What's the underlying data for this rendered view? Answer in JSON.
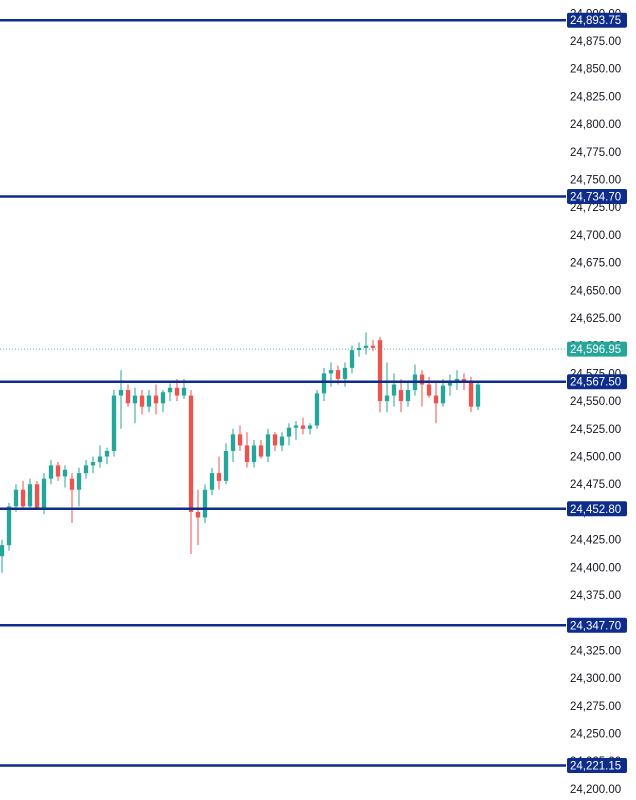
{
  "chart_data": {
    "type": "candlestick",
    "ylim": [
      24190,
      24912
    ],
    "y_ticks": [
      "24,900.00",
      "24,875.00",
      "24,850.00",
      "24,825.00",
      "24,800.00",
      "24,775.00",
      "24,750.00",
      "24,725.00",
      "24,700.00",
      "24,675.00",
      "24,650.00",
      "24,625.00",
      "24,600.00",
      "24,575.00",
      "24,550.00",
      "24,525.00",
      "24,500.00",
      "24,475.00",
      "24,450.00",
      "24,425.00",
      "24,400.00",
      "24,375.00",
      "24,350.00",
      "24,325.00",
      "24,300.00",
      "24,275.00",
      "24,250.00",
      "24,225.00",
      "24,200.00"
    ],
    "y_tick_values": [
      24900,
      24875,
      24850,
      24825,
      24800,
      24775,
      24750,
      24725,
      24700,
      24675,
      24650,
      24625,
      24600,
      24575,
      24550,
      24525,
      24500,
      24475,
      24450,
      24425,
      24400,
      24375,
      24350,
      24325,
      24300,
      24275,
      24250,
      24225,
      24200
    ],
    "horizontal_levels": [
      {
        "value": 24893.75,
        "label": "24,893.75"
      },
      {
        "value": 24734.7,
        "label": "24,734.70"
      },
      {
        "value": 24567.5,
        "label": "24,567.50"
      },
      {
        "value": 24452.8,
        "label": "24,452.80"
      },
      {
        "value": 24347.7,
        "label": "24,347.70"
      },
      {
        "value": 24221.15,
        "label": "24,221.15"
      }
    ],
    "last_price": {
      "value": 24596.95,
      "label": "24,596.95"
    },
    "colors": {
      "up": "#26a69a",
      "down": "#ef5350",
      "level": "#0d2c8c",
      "last_price": "#26a69a"
    },
    "candles": [
      {
        "o": 24410,
        "h": 24425,
        "l": 24395,
        "c": 24420
      },
      {
        "o": 24420,
        "h": 24458,
        "l": 24415,
        "c": 24455
      },
      {
        "o": 24455,
        "h": 24475,
        "l": 24450,
        "c": 24470
      },
      {
        "o": 24470,
        "h": 24478,
        "l": 24452,
        "c": 24455
      },
      {
        "o": 24455,
        "h": 24480,
        "l": 24452,
        "c": 24475
      },
      {
        "o": 24475,
        "h": 24478,
        "l": 24452,
        "c": 24452
      },
      {
        "o": 24452,
        "h": 24485,
        "l": 24448,
        "c": 24480
      },
      {
        "o": 24480,
        "h": 24497,
        "l": 24475,
        "c": 24492
      },
      {
        "o": 24492,
        "h": 24495,
        "l": 24478,
        "c": 24482
      },
      {
        "o": 24482,
        "h": 24492,
        "l": 24472,
        "c": 24488
      },
      {
        "o": 24480,
        "h": 24485,
        "l": 24440,
        "c": 24470
      },
      {
        "o": 24470,
        "h": 24490,
        "l": 24455,
        "c": 24485
      },
      {
        "o": 24485,
        "h": 24497,
        "l": 24480,
        "c": 24492
      },
      {
        "o": 24492,
        "h": 24500,
        "l": 24485,
        "c": 24495
      },
      {
        "o": 24495,
        "h": 24510,
        "l": 24490,
        "c": 24500
      },
      {
        "o": 24500,
        "h": 24508,
        "l": 24493,
        "c": 24505
      },
      {
        "o": 24505,
        "h": 24560,
        "l": 24500,
        "c": 24555
      },
      {
        "o": 24555,
        "h": 24578,
        "l": 24525,
        "c": 24560
      },
      {
        "o": 24560,
        "h": 24565,
        "l": 24545,
        "c": 24548
      },
      {
        "o": 24548,
        "h": 24562,
        "l": 24530,
        "c": 24555
      },
      {
        "o": 24555,
        "h": 24560,
        "l": 24538,
        "c": 24545
      },
      {
        "o": 24545,
        "h": 24560,
        "l": 24540,
        "c": 24555
      },
      {
        "o": 24555,
        "h": 24565,
        "l": 24538,
        "c": 24548
      },
      {
        "o": 24548,
        "h": 24560,
        "l": 24540,
        "c": 24558
      },
      {
        "o": 24558,
        "h": 24566,
        "l": 24550,
        "c": 24562
      },
      {
        "o": 24562,
        "h": 24570,
        "l": 24550,
        "c": 24555
      },
      {
        "o": 24555,
        "h": 24570,
        "l": 24552,
        "c": 24562
      },
      {
        "o": 24555,
        "h": 24560,
        "l": 24412,
        "c": 24450
      },
      {
        "o": 24450,
        "h": 24470,
        "l": 24420,
        "c": 24445
      },
      {
        "o": 24445,
        "h": 24475,
        "l": 24440,
        "c": 24470
      },
      {
        "o": 24470,
        "h": 24490,
        "l": 24465,
        "c": 24485
      },
      {
        "o": 24485,
        "h": 24500,
        "l": 24470,
        "c": 24478
      },
      {
        "o": 24478,
        "h": 24512,
        "l": 24475,
        "c": 24505
      },
      {
        "o": 24505,
        "h": 24525,
        "l": 24495,
        "c": 24520
      },
      {
        "o": 24520,
        "h": 24528,
        "l": 24505,
        "c": 24510
      },
      {
        "o": 24510,
        "h": 24522,
        "l": 24490,
        "c": 24495
      },
      {
        "o": 24495,
        "h": 24515,
        "l": 24490,
        "c": 24510
      },
      {
        "o": 24510,
        "h": 24515,
        "l": 24498,
        "c": 24500
      },
      {
        "o": 24500,
        "h": 24525,
        "l": 24495,
        "c": 24520
      },
      {
        "o": 24520,
        "h": 24522,
        "l": 24505,
        "c": 24510
      },
      {
        "o": 24510,
        "h": 24522,
        "l": 24505,
        "c": 24518
      },
      {
        "o": 24518,
        "h": 24530,
        "l": 24510,
        "c": 24526
      },
      {
        "o": 24526,
        "h": 24532,
        "l": 24515,
        "c": 24528
      },
      {
        "o": 24528,
        "h": 24535,
        "l": 24520,
        "c": 24525
      },
      {
        "o": 24525,
        "h": 24530,
        "l": 24520,
        "c": 24528
      },
      {
        "o": 24528,
        "h": 24560,
        "l": 24525,
        "c": 24557
      },
      {
        "o": 24557,
        "h": 24580,
        "l": 24550,
        "c": 24575
      },
      {
        "o": 24575,
        "h": 24585,
        "l": 24563,
        "c": 24578
      },
      {
        "o": 24578,
        "h": 24582,
        "l": 24565,
        "c": 24570
      },
      {
        "o": 24570,
        "h": 24585,
        "l": 24563,
        "c": 24580
      },
      {
        "o": 24580,
        "h": 24600,
        "l": 24575,
        "c": 24596
      },
      {
        "o": 24596,
        "h": 24603,
        "l": 24590,
        "c": 24598
      },
      {
        "o": 24598,
        "h": 24612,
        "l": 24592,
        "c": 24600
      },
      {
        "o": 24600,
        "h": 24605,
        "l": 24595,
        "c": 24598
      },
      {
        "o": 24605,
        "h": 24608,
        "l": 24540,
        "c": 24550
      },
      {
        "o": 24550,
        "h": 24585,
        "l": 24540,
        "c": 24555
      },
      {
        "o": 24555,
        "h": 24575,
        "l": 24545,
        "c": 24565
      },
      {
        "o": 24560,
        "h": 24570,
        "l": 24540,
        "c": 24550
      },
      {
        "o": 24550,
        "h": 24567,
        "l": 24545,
        "c": 24560
      },
      {
        "o": 24560,
        "h": 24583,
        "l": 24555,
        "c": 24574
      },
      {
        "o": 24574,
        "h": 24578,
        "l": 24545,
        "c": 24565
      },
      {
        "o": 24565,
        "h": 24572,
        "l": 24553,
        "c": 24555
      },
      {
        "o": 24555,
        "h": 24568,
        "l": 24530,
        "c": 24548
      },
      {
        "o": 24548,
        "h": 24570,
        "l": 24545,
        "c": 24564
      },
      {
        "o": 24564,
        "h": 24574,
        "l": 24555,
        "c": 24567
      },
      {
        "o": 24567,
        "h": 24578,
        "l": 24560,
        "c": 24570
      },
      {
        "o": 24570,
        "h": 24575,
        "l": 24560,
        "c": 24568
      },
      {
        "o": 24568,
        "h": 24572,
        "l": 24540,
        "c": 24545
      },
      {
        "o": 24545,
        "h": 24568,
        "l": 24542,
        "c": 24565
      }
    ]
  }
}
